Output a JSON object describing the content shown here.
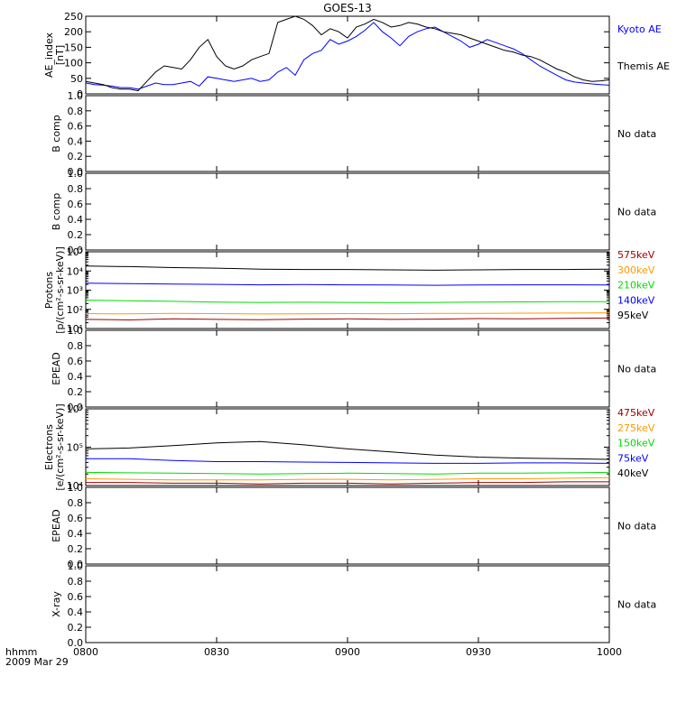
{
  "title": "GOES-13",
  "footer": {
    "time_label": "hhmm",
    "date_label": "2009 Mar 29"
  },
  "no_data_label": "No data",
  "x_ticks": [
    "0800",
    "0830",
    "0900",
    "0930",
    "1000"
  ],
  "chart_data": [
    {
      "type": "line",
      "panel": "ae_index",
      "ylabel": "AE_index",
      "ylabel2": "[nT]",
      "ylim": [
        0,
        250
      ],
      "yticks": [
        "0",
        "50",
        "100",
        "150",
        "200",
        "250"
      ],
      "x": [
        0,
        2,
        4,
        6,
        8,
        10,
        12,
        14,
        16,
        18,
        20,
        22,
        24,
        26,
        28,
        30,
        32,
        34,
        36,
        38,
        40,
        42,
        44,
        46,
        48,
        50,
        52,
        54,
        56,
        58,
        60,
        62,
        64,
        66,
        68,
        70,
        72,
        74,
        76,
        78,
        80,
        82,
        84,
        86,
        88,
        90,
        92,
        94,
        96,
        98,
        100,
        102,
        104,
        106,
        108,
        110,
        112,
        114,
        116,
        118,
        120
      ],
      "series": [
        {
          "name": "Kyoto AE",
          "color": "#0000ff",
          "values": [
            35,
            30,
            28,
            25,
            20,
            20,
            15,
            25,
            35,
            30,
            30,
            35,
            40,
            25,
            55,
            50,
            45,
            40,
            45,
            50,
            40,
            45,
            70,
            85,
            60,
            110,
            130,
            140,
            175,
            160,
            170,
            185,
            205,
            230,
            200,
            180,
            155,
            185,
            200,
            210,
            215,
            200,
            185,
            170,
            150,
            160,
            175,
            165,
            155,
            145,
            130,
            110,
            90,
            75,
            60,
            45,
            38,
            35,
            32,
            30,
            28
          ]
        },
        {
          "name": "Themis AE",
          "color": "#000000",
          "values": [
            40,
            35,
            30,
            20,
            15,
            15,
            10,
            40,
            70,
            90,
            85,
            80,
            110,
            150,
            175,
            120,
            90,
            80,
            90,
            110,
            120,
            130,
            230,
            240,
            250,
            240,
            220,
            190,
            210,
            200,
            180,
            215,
            225,
            240,
            230,
            215,
            220,
            230,
            225,
            215,
            210,
            200,
            195,
            190,
            180,
            170,
            160,
            150,
            140,
            135,
            125,
            120,
            110,
            95,
            80,
            70,
            55,
            45,
            40,
            42,
            45
          ]
        }
      ]
    },
    {
      "type": "line",
      "panel": "b_comp_1",
      "ylabel": "B comp",
      "ylim": [
        0,
        1
      ],
      "yticks": [
        "0.0",
        "0.2",
        "0.4",
        "0.6",
        "0.8",
        "1.0"
      ],
      "series": [],
      "note": "No data"
    },
    {
      "type": "line",
      "panel": "b_comp_2",
      "ylabel": "B comp",
      "ylim": [
        0,
        1
      ],
      "yticks": [
        "0.0",
        "0.2",
        "0.4",
        "0.6",
        "0.8",
        "1.0"
      ],
      "series": [],
      "note": "No data"
    },
    {
      "type": "line",
      "panel": "protons",
      "ylabel": "Protons",
      "ylabel2": "[p/(cm²-s-sr-keV)]",
      "yscale": "log",
      "ylim": [
        10,
        100000
      ],
      "yticks": [
        "10¹",
        "10²",
        "10³",
        "10⁴",
        "10⁵"
      ],
      "x": [
        0,
        10,
        20,
        30,
        40,
        50,
        60,
        70,
        80,
        90,
        100,
        110,
        120
      ],
      "series": [
        {
          "name": "575keV",
          "color": "#a00000",
          "values": [
            30,
            28,
            32,
            30,
            29,
            31,
            32,
            30,
            31,
            33,
            32,
            34,
            35
          ]
        },
        {
          "name": "300keV",
          "color": "#ff9900",
          "values": [
            60,
            58,
            62,
            60,
            57,
            58,
            60,
            59,
            62,
            61,
            63,
            64,
            66
          ]
        },
        {
          "name": "210keV",
          "color": "#00dd00",
          "values": [
            300,
            280,
            260,
            240,
            230,
            235,
            230,
            225,
            230,
            240,
            245,
            250,
            250
          ]
        },
        {
          "name": "140keV",
          "color": "#0000ff",
          "values": [
            2300,
            2200,
            2100,
            2000,
            1900,
            1950,
            1900,
            1850,
            1800,
            1850,
            1900,
            1900,
            1850
          ]
        },
        {
          "name": "95keV",
          "color": "#000000",
          "values": [
            18000,
            17000,
            15000,
            14000,
            12500,
            12000,
            12000,
            11500,
            11000,
            11500,
            12000,
            12000,
            12500
          ]
        }
      ]
    },
    {
      "type": "line",
      "panel": "epead_1",
      "ylabel": "EPEAD",
      "ylim": [
        0,
        1
      ],
      "yticks": [
        "0.0",
        "0.2",
        "0.4",
        "0.6",
        "0.8",
        "1.0"
      ],
      "series": [],
      "note": "No data"
    },
    {
      "type": "line",
      "panel": "electrons",
      "ylabel": "Electrons",
      "ylabel2": "[e/(cm²-s-sr-keV)]",
      "yscale": "log",
      "ylim": [
        10000,
        1000000
      ],
      "yticks": [
        "10⁴",
        "10⁵",
        "10⁶"
      ],
      "x": [
        0,
        10,
        20,
        30,
        40,
        50,
        60,
        70,
        80,
        90,
        100,
        110,
        120
      ],
      "series": [
        {
          "name": "475keV",
          "color": "#a00000",
          "values": [
            12000,
            12000,
            11500,
            11500,
            11000,
            11500,
            11500,
            11000,
            11500,
            12000,
            12000,
            12500,
            12500
          ]
        },
        {
          "name": "275keV",
          "color": "#ff9900",
          "values": [
            15000,
            14500,
            14000,
            14000,
            14000,
            14500,
            14500,
            14000,
            14500,
            15000,
            15000,
            15500,
            16000
          ]
        },
        {
          "name": "150keV",
          "color": "#00dd00",
          "values": [
            22000,
            21500,
            21000,
            20500,
            20000,
            20500,
            21000,
            20500,
            20000,
            21000,
            21000,
            21500,
            22000
          ]
        },
        {
          "name": "75keV",
          "color": "#0000ff",
          "values": [
            50000,
            50000,
            45000,
            42000,
            42000,
            41000,
            40000,
            39000,
            38000,
            38000,
            39000,
            39000,
            38000
          ]
        },
        {
          "name": "40keV",
          "color": "#000000",
          "values": [
            90000,
            95000,
            110000,
            130000,
            140000,
            115000,
            90000,
            75000,
            62000,
            55000,
            52000,
            50000,
            48000
          ]
        }
      ]
    },
    {
      "type": "line",
      "panel": "epead_2",
      "ylabel": "EPEAD",
      "ylim": [
        0,
        1
      ],
      "yticks": [
        "0.0",
        "0.2",
        "0.4",
        "0.6",
        "0.8",
        "1.0"
      ],
      "series": [],
      "note": "No data"
    },
    {
      "type": "line",
      "panel": "x_ray",
      "ylabel": "X-ray",
      "ylim": [
        0,
        1
      ],
      "yticks": [
        "0.0",
        "0.2",
        "0.4",
        "0.6",
        "0.8",
        "1.0"
      ],
      "series": [],
      "note": "No data"
    }
  ]
}
